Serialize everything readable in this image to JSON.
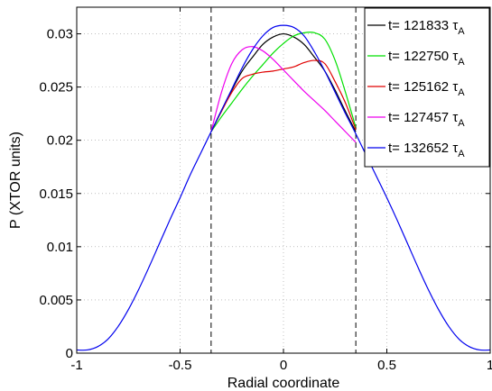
{
  "chart_data": {
    "type": "line",
    "xlabel": "Radial coordinate",
    "ylabel": "P (XTOR units)",
    "xlim": [
      -1,
      1
    ],
    "ylim": [
      0,
      0.0325
    ],
    "xticks": [
      -1,
      -0.5,
      0,
      0.5,
      1
    ],
    "xtick_labels": [
      "-1",
      "-0.5",
      "0",
      "0.5",
      "1"
    ],
    "yticks": [
      0,
      0.005,
      0.01,
      0.015,
      0.02,
      0.025,
      0.03
    ],
    "ytick_labels": [
      "0",
      "0.005",
      "0.01",
      "0.015",
      "0.02",
      "0.025",
      "0.03"
    ],
    "grid": true,
    "legend_position": "top-right",
    "vlines": [
      -0.35,
      0.35
    ],
    "vline_style": "dashed",
    "series": [
      {
        "name": "t= 121833",
        "unit": "τ",
        "unit_sub": "A",
        "color": "#000000",
        "x": [
          -0.35,
          -0.3,
          -0.25,
          -0.2,
          -0.15,
          -0.1,
          -0.05,
          0.0,
          0.05,
          0.1,
          0.15,
          0.2,
          0.25,
          0.3,
          0.35
        ],
        "y": [
          0.0208,
          0.0228,
          0.0247,
          0.0265,
          0.0278,
          0.029,
          0.0297,
          0.03,
          0.0297,
          0.029,
          0.0278,
          0.0265,
          0.0247,
          0.0227,
          0.0208
        ]
      },
      {
        "name": "t= 122750",
        "unit": "τ",
        "unit_sub": "A",
        "color": "#00e000",
        "x": [
          -0.35,
          -0.3,
          -0.25,
          -0.2,
          -0.15,
          -0.1,
          -0.05,
          0.0,
          0.05,
          0.1,
          0.15,
          0.2,
          0.25,
          0.3,
          0.35
        ],
        "y": [
          0.0208,
          0.0222,
          0.0235,
          0.0248,
          0.026,
          0.0271,
          0.0282,
          0.0291,
          0.0298,
          0.0301,
          0.0301,
          0.0295,
          0.0275,
          0.0245,
          0.0212
        ]
      },
      {
        "name": "t= 125162",
        "unit": "τ",
        "unit_sub": "A",
        "color": "#e00000",
        "x": [
          -0.35,
          -0.3,
          -0.25,
          -0.2,
          -0.15,
          -0.1,
          -0.05,
          0.0,
          0.05,
          0.1,
          0.15,
          0.2,
          0.25,
          0.3,
          0.35
        ],
        "y": [
          0.0208,
          0.0227,
          0.0245,
          0.0258,
          0.0262,
          0.0264,
          0.0265,
          0.0267,
          0.0269,
          0.0273,
          0.0275,
          0.0272,
          0.0255,
          0.0235,
          0.021
        ]
      },
      {
        "name": "t= 127457",
        "unit": "τ",
        "unit_sub": "A",
        "color": "#ee00ee",
        "x": [
          -0.35,
          -0.3,
          -0.25,
          -0.2,
          -0.15,
          -0.1,
          -0.05,
          0.0,
          0.05,
          0.1,
          0.15,
          0.2,
          0.25,
          0.3,
          0.35
        ],
        "y": [
          0.0208,
          0.0245,
          0.0272,
          0.0285,
          0.0288,
          0.0284,
          0.0276,
          0.0266,
          0.0256,
          0.0246,
          0.0237,
          0.0228,
          0.0218,
          0.0208,
          0.0198
        ]
      },
      {
        "name": "t= 132652",
        "unit": "τ",
        "unit_sub": "A",
        "color": "#0000ee",
        "x": [
          -1.0,
          -0.95,
          -0.9,
          -0.85,
          -0.8,
          -0.75,
          -0.7,
          -0.65,
          -0.6,
          -0.55,
          -0.5,
          -0.45,
          -0.4,
          -0.35,
          -0.3,
          -0.25,
          -0.2,
          -0.15,
          -0.1,
          -0.05,
          0.0,
          0.05,
          0.1,
          0.15,
          0.2,
          0.25,
          0.3,
          0.35,
          0.4,
          0.45,
          0.5,
          0.55,
          0.6,
          0.65,
          0.7,
          0.75,
          0.8,
          0.85,
          0.9,
          0.95,
          1.0
        ],
        "y": [
          0.0003,
          0.0003,
          0.0006,
          0.0013,
          0.0025,
          0.0041,
          0.006,
          0.0081,
          0.0103,
          0.0125,
          0.0146,
          0.0168,
          0.0188,
          0.0208,
          0.0228,
          0.0248,
          0.0268,
          0.0285,
          0.0298,
          0.0306,
          0.0308,
          0.0306,
          0.0298,
          0.0283,
          0.0265,
          0.0245,
          0.0225,
          0.0206,
          0.0186,
          0.0166,
          0.0146,
          0.0125,
          0.0103,
          0.0081,
          0.006,
          0.0041,
          0.0025,
          0.0013,
          0.0006,
          0.0003,
          0.0003
        ]
      }
    ]
  }
}
